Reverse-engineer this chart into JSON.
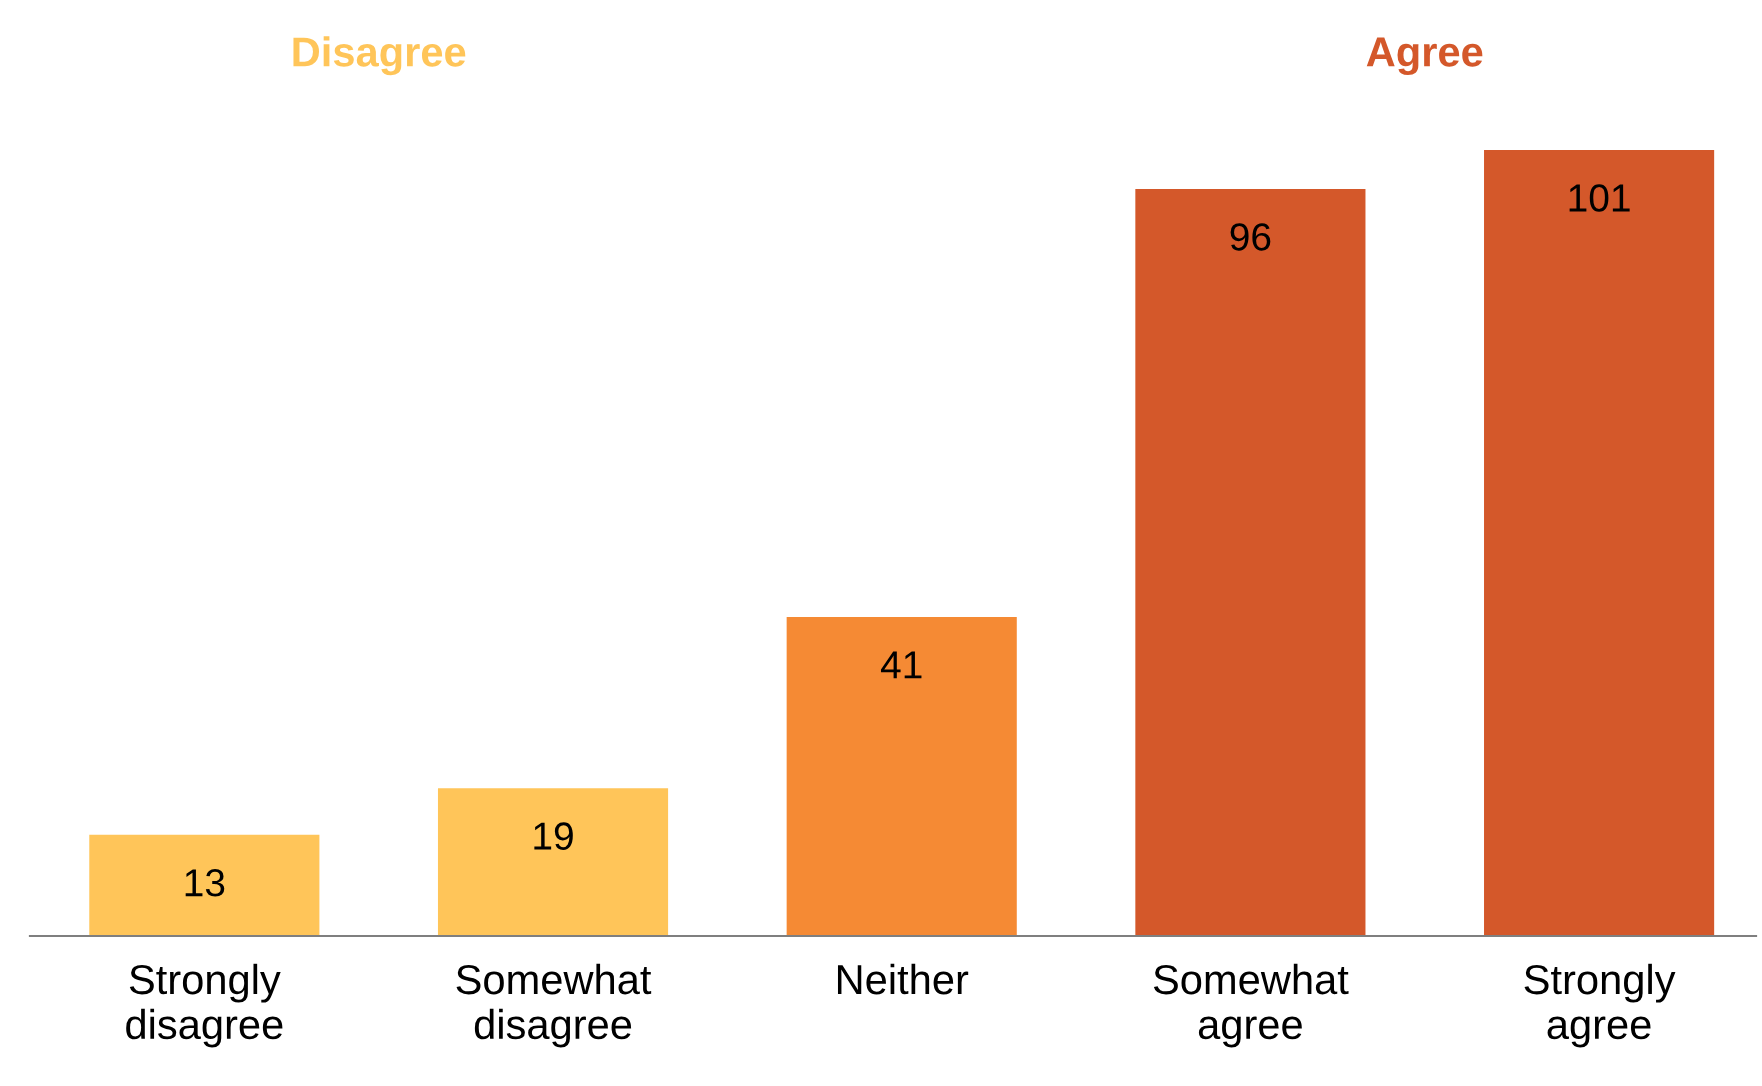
{
  "chart_data": {
    "type": "bar",
    "categories": [
      "Strongly\ndisagree",
      "Somewhat\ndisagree",
      "Neither",
      "Somewhat\nagree",
      "Strongly\nagree"
    ],
    "values": [
      13,
      19,
      41,
      96,
      101
    ],
    "colors": [
      "#ffc559",
      "#ffc559",
      "#f58a34",
      "#d4582a",
      "#d4582a"
    ],
    "data_labels": true,
    "annotations": [
      "Disagree",
      "Agree"
    ]
  }
}
